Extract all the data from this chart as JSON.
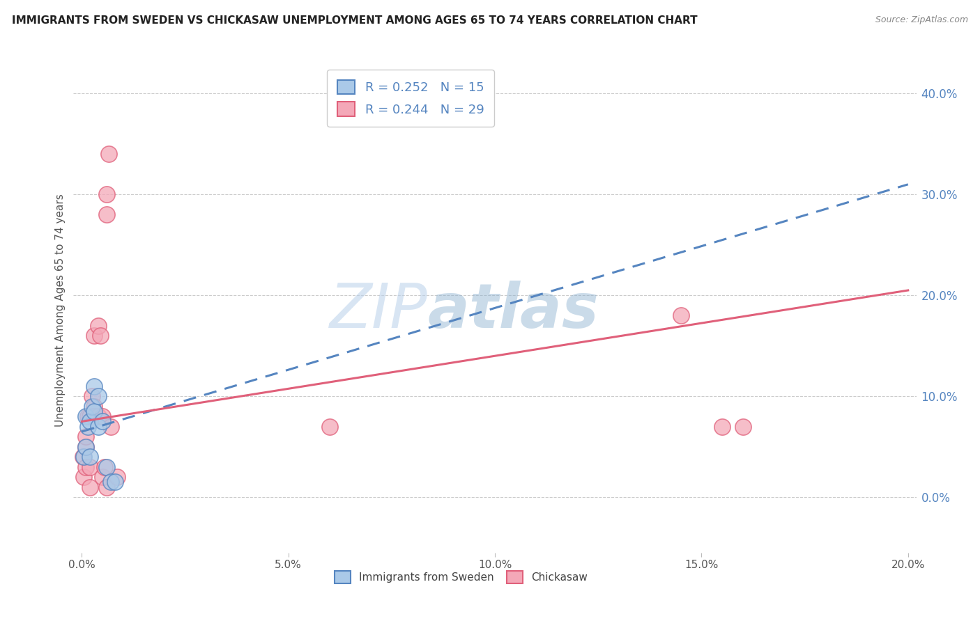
{
  "title": "IMMIGRANTS FROM SWEDEN VS CHICKASAW UNEMPLOYMENT AMONG AGES 65 TO 74 YEARS CORRELATION CHART",
  "source": "Source: ZipAtlas.com",
  "ylabel": "Unemployment Among Ages 65 to 74 years",
  "xlim": [
    -0.002,
    0.202
  ],
  "ylim": [
    -0.055,
    0.425
  ],
  "xticks": [
    0.0,
    0.05,
    0.1,
    0.15,
    0.2
  ],
  "xtick_labels": [
    "0.0%",
    "5.0%",
    "10.0%",
    "15.0%",
    "20.0%"
  ],
  "yticks_right": [
    0.0,
    0.1,
    0.2,
    0.3,
    0.4
  ],
  "ytick_labels_right": [
    "0.0%",
    "10.0%",
    "20.0%",
    "30.0%",
    "40.0%"
  ],
  "sweden_R": 0.252,
  "sweden_N": 15,
  "chickasaw_R": 0.244,
  "chickasaw_N": 29,
  "sweden_color": "#aac9e8",
  "chickasaw_color": "#f4a8b8",
  "sweden_line_color": "#5585c0",
  "chickasaw_line_color": "#e0607a",
  "watermark_zip": "ZIP",
  "watermark_atlas": "atlas",
  "sweden_x": [
    0.0005,
    0.001,
    0.001,
    0.0015,
    0.002,
    0.002,
    0.0025,
    0.003,
    0.003,
    0.004,
    0.004,
    0.005,
    0.006,
    0.007,
    0.008
  ],
  "sweden_y": [
    0.04,
    0.08,
    0.05,
    0.07,
    0.075,
    0.04,
    0.09,
    0.11,
    0.085,
    0.1,
    0.07,
    0.075,
    0.03,
    0.015,
    0.015
  ],
  "chickasaw_x": [
    0.0003,
    0.0005,
    0.001,
    0.001,
    0.001,
    0.0015,
    0.002,
    0.002,
    0.002,
    0.0025,
    0.003,
    0.003,
    0.003,
    0.004,
    0.004,
    0.0045,
    0.005,
    0.005,
    0.0055,
    0.006,
    0.006,
    0.006,
    0.0065,
    0.007,
    0.0085,
    0.06,
    0.145,
    0.155,
    0.16
  ],
  "chickasaw_y": [
    0.04,
    0.02,
    0.05,
    0.03,
    0.06,
    0.08,
    0.08,
    0.03,
    0.01,
    0.1,
    0.09,
    0.08,
    0.16,
    0.08,
    0.17,
    0.16,
    0.08,
    0.02,
    0.03,
    0.01,
    0.3,
    0.28,
    0.34,
    0.07,
    0.02,
    0.07,
    0.18,
    0.07,
    0.07
  ],
  "sweden_trendline_x0": 0.0,
  "sweden_trendline_y0": 0.065,
  "sweden_trendline_x1": 0.2,
  "sweden_trendline_y1": 0.31,
  "chickasaw_trendline_x0": 0.0,
  "chickasaw_trendline_y0": 0.075,
  "chickasaw_trendline_x1": 0.2,
  "chickasaw_trendline_y1": 0.205
}
